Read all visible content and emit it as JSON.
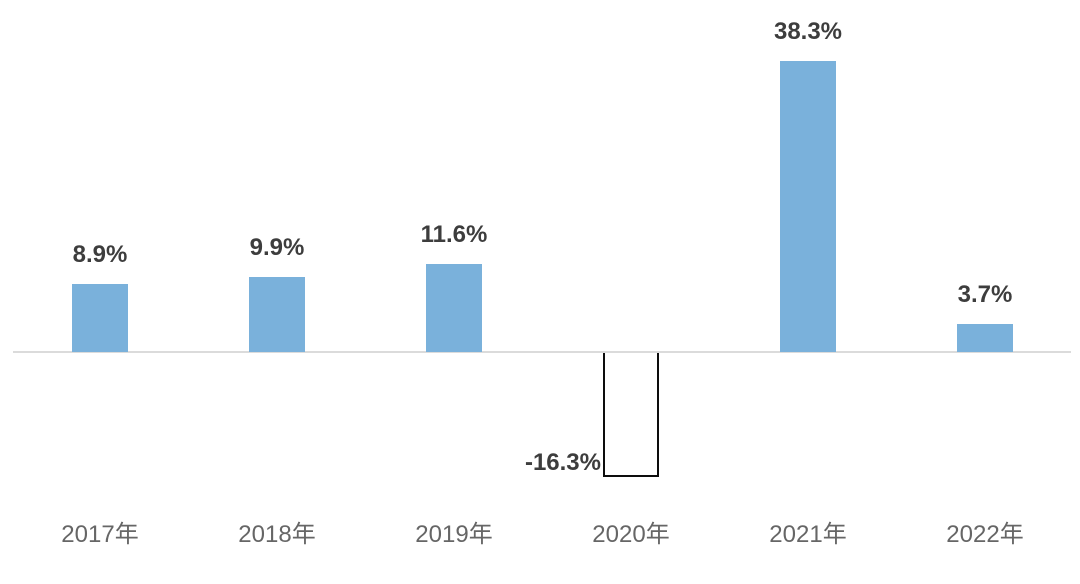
{
  "chart_data": {
    "type": "bar",
    "categories": [
      "2017年",
      "2018年",
      "2019年",
      "2020年",
      "2021年",
      "2022年"
    ],
    "values": [
      8.9,
      9.9,
      11.6,
      -16.3,
      38.3,
      3.7
    ],
    "value_labels": [
      "8.9%",
      "9.9%",
      "11.6%",
      "-16.3%",
      "38.3%",
      "3.7%"
    ],
    "title": "",
    "xlabel": "",
    "ylabel": "",
    "unit": "%",
    "baseline": 0,
    "ylim": [
      -20,
      42
    ],
    "grid": "off",
    "legend": "none",
    "colors": {
      "bar_positive": "#7AB1DB",
      "bar_negative_fill": "#FFFFFF",
      "bar_negative_border": "#0D0D0D",
      "axis_line": "#DBDBDB",
      "value_label": "#3D3D3D",
      "category_label": "#666666",
      "background": "#FFFFFF"
    }
  }
}
